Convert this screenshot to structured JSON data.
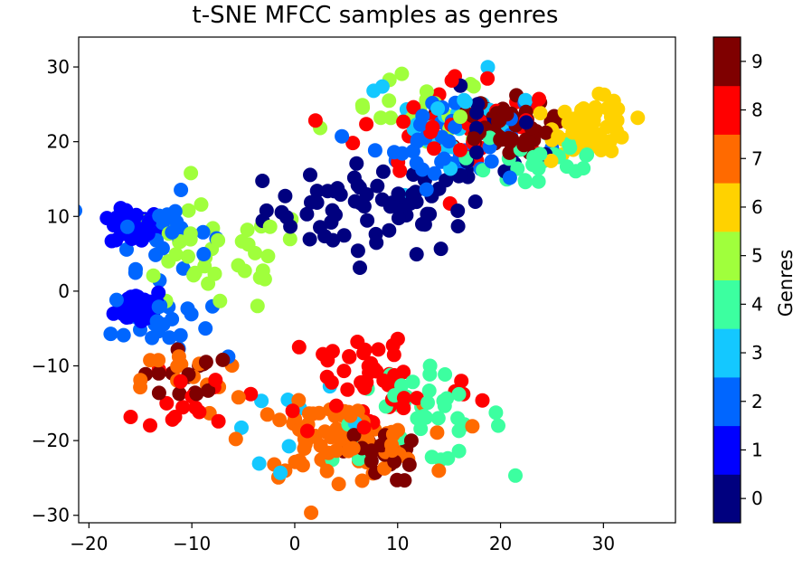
{
  "chart_data": {
    "type": "scatter",
    "title": "t-SNE MFCC samples as genres",
    "xlabel": "",
    "ylabel": "",
    "xlim": [
      -21,
      37
    ],
    "ylim": [
      -31,
      34
    ],
    "xticks": [
      -20,
      -10,
      0,
      10,
      20,
      30
    ],
    "yticks": [
      -30,
      -20,
      -10,
      0,
      10,
      20,
      30
    ],
    "xtick_labels": [
      "−20",
      "−10",
      "0",
      "10",
      "20",
      "30"
    ],
    "ytick_labels": [
      "−30",
      "−20",
      "−10",
      "0",
      "10",
      "20",
      "30"
    ],
    "grid": false,
    "colorbar": {
      "label": "Genres",
      "colormap": "jet",
      "ticks": [
        "0",
        "1",
        "2",
        "3",
        "4",
        "5",
        "6",
        "7",
        "8",
        "9"
      ],
      "colors": [
        "#00007f",
        "#0000ff",
        "#0066ff",
        "#14c8ff",
        "#3cffa0",
        "#a0ff3c",
        "#ffd200",
        "#ff6a00",
        "#ff0000",
        "#7f0000"
      ]
    },
    "clusters": [
      {
        "genre": 0,
        "center": [
          8,
          11
        ],
        "spread": [
          9,
          5
        ],
        "n": 70
      },
      {
        "genre": 0,
        "center": [
          18,
          20
        ],
        "spread": [
          5,
          5
        ],
        "n": 20
      },
      {
        "genre": 1,
        "center": [
          -15.5,
          8.5
        ],
        "spread": [
          2,
          2
        ],
        "n": 40
      },
      {
        "genre": 1,
        "center": [
          -15,
          -2
        ],
        "spread": [
          2,
          2
        ],
        "n": 40
      },
      {
        "genre": 2,
        "center": [
          -13,
          8
        ],
        "spread": [
          4,
          4
        ],
        "n": 25
      },
      {
        "genre": 2,
        "center": [
          -13,
          -4
        ],
        "spread": [
          4,
          4
        ],
        "n": 25
      },
      {
        "genre": 2,
        "center": [
          15,
          20
        ],
        "spread": [
          6,
          5
        ],
        "n": 40
      },
      {
        "genre": 3,
        "center": [
          15,
          23
        ],
        "spread": [
          7,
          5
        ],
        "n": 25
      },
      {
        "genre": 3,
        "center": [
          0,
          -18
        ],
        "spread": [
          6,
          4
        ],
        "n": 10
      },
      {
        "genre": 4,
        "center": [
          12,
          -17
        ],
        "spread": [
          7,
          5
        ],
        "n": 40
      },
      {
        "genre": 4,
        "center": [
          24,
          18
        ],
        "spread": [
          6,
          5
        ],
        "n": 30
      },
      {
        "genre": 5,
        "center": [
          -8,
          4
        ],
        "spread": [
          8,
          6
        ],
        "n": 40
      },
      {
        "genre": 5,
        "center": [
          12,
          24
        ],
        "spread": [
          6,
          4
        ],
        "n": 25
      },
      {
        "genre": 6,
        "center": [
          29,
          22
        ],
        "spread": [
          3,
          3
        ],
        "n": 70
      },
      {
        "genre": 7,
        "center": [
          4,
          -20
        ],
        "spread": [
          7,
          4
        ],
        "n": 90
      },
      {
        "genre": 7,
        "center": [
          -10,
          -12
        ],
        "spread": [
          4,
          4
        ],
        "n": 15
      },
      {
        "genre": 8,
        "center": [
          8,
          -12
        ],
        "spread": [
          8,
          7
        ],
        "n": 50
      },
      {
        "genre": 8,
        "center": [
          16,
          22
        ],
        "spread": [
          8,
          6
        ],
        "n": 40
      },
      {
        "genre": 8,
        "center": [
          -10,
          -14
        ],
        "spread": [
          4,
          4
        ],
        "n": 15
      },
      {
        "genre": 9,
        "center": [
          20,
          22
        ],
        "spread": [
          4,
          3
        ],
        "n": 60
      },
      {
        "genre": 9,
        "center": [
          8,
          -22
        ],
        "spread": [
          3,
          3
        ],
        "n": 25
      },
      {
        "genre": 9,
        "center": [
          -11,
          -11
        ],
        "spread": [
          3,
          3
        ],
        "n": 15
      }
    ]
  }
}
